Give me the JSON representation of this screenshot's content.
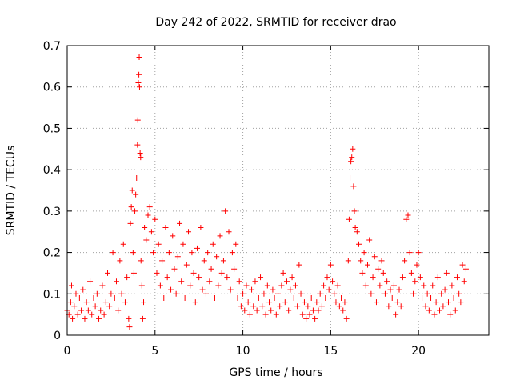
{
  "chart_data": {
    "type": "scatter",
    "title": "Day 242 of 2022, SRMTID for receiver drao",
    "xlabel": "GPS time / hours",
    "ylabel": "SRMTID / TECUs",
    "xlim": [
      0,
      24
    ],
    "ylim": [
      0,
      0.7
    ],
    "xticks": [
      0,
      5,
      10,
      15,
      20
    ],
    "yticks": [
      0,
      0.1,
      0.2,
      0.3,
      0.4,
      0.5,
      0.6,
      0.7
    ],
    "xtick_labels": [
      "0",
      "5",
      "10",
      "15",
      "20"
    ],
    "ytick_labels": [
      "0",
      "0.1",
      "0.2",
      "0.3",
      "0.4",
      "0.5",
      "0.6",
      "0.7"
    ],
    "grid": true,
    "marker": "+",
    "color": "#ff0000",
    "series": [
      {
        "name": "SRMTID",
        "points": [
          [
            0.0,
            0.06
          ],
          [
            0.1,
            0.05
          ],
          [
            0.2,
            0.08
          ],
          [
            0.25,
            0.12
          ],
          [
            0.3,
            0.04
          ],
          [
            0.4,
            0.07
          ],
          [
            0.5,
            0.1
          ],
          [
            0.6,
            0.05
          ],
          [
            0.7,
            0.09
          ],
          [
            0.8,
            0.06
          ],
          [
            0.9,
            0.11
          ],
          [
            1.0,
            0.04
          ],
          [
            1.1,
            0.08
          ],
          [
            1.2,
            0.06
          ],
          [
            1.3,
            0.13
          ],
          [
            1.4,
            0.05
          ],
          [
            1.5,
            0.09
          ],
          [
            1.6,
            0.07
          ],
          [
            1.7,
            0.1
          ],
          [
            1.8,
            0.04
          ],
          [
            1.9,
            0.06
          ],
          [
            2.0,
            0.12
          ],
          [
            2.1,
            0.05
          ],
          [
            2.2,
            0.08
          ],
          [
            2.3,
            0.15
          ],
          [
            2.4,
            0.07
          ],
          [
            2.5,
            0.1
          ],
          [
            2.6,
            0.2
          ],
          [
            2.7,
            0.09
          ],
          [
            2.8,
            0.13
          ],
          [
            2.9,
            0.06
          ],
          [
            3.0,
            0.18
          ],
          [
            3.1,
            0.1
          ],
          [
            3.2,
            0.22
          ],
          [
            3.3,
            0.08
          ],
          [
            3.4,
            0.14
          ],
          [
            3.5,
            0.04
          ],
          [
            3.55,
            0.02
          ],
          [
            3.6,
            0.27
          ],
          [
            3.65,
            0.31
          ],
          [
            3.7,
            0.35
          ],
          [
            3.75,
            0.2
          ],
          [
            3.8,
            0.15
          ],
          [
            3.85,
            0.3
          ],
          [
            3.9,
            0.34
          ],
          [
            3.95,
            0.38
          ],
          [
            4.0,
            0.46
          ],
          [
            4.02,
            0.52
          ],
          [
            4.05,
            0.61
          ],
          [
            4.08,
            0.63
          ],
          [
            4.1,
            0.672
          ],
          [
            4.12,
            0.6
          ],
          [
            4.15,
            0.44
          ],
          [
            4.18,
            0.43
          ],
          [
            4.2,
            0.18
          ],
          [
            4.25,
            0.12
          ],
          [
            4.3,
            0.04
          ],
          [
            4.35,
            0.08
          ],
          [
            4.4,
            0.26
          ],
          [
            4.5,
            0.23
          ],
          [
            4.6,
            0.29
          ],
          [
            4.7,
            0.31
          ],
          [
            4.8,
            0.25
          ],
          [
            4.9,
            0.2
          ],
          [
            5.0,
            0.28
          ],
          [
            5.1,
            0.15
          ],
          [
            5.2,
            0.22
          ],
          [
            5.3,
            0.12
          ],
          [
            5.4,
            0.18
          ],
          [
            5.5,
            0.09
          ],
          [
            5.6,
            0.26
          ],
          [
            5.7,
            0.14
          ],
          [
            5.8,
            0.2
          ],
          [
            5.9,
            0.11
          ],
          [
            6.0,
            0.24
          ],
          [
            6.1,
            0.16
          ],
          [
            6.2,
            0.1
          ],
          [
            6.3,
            0.19
          ],
          [
            6.4,
            0.27
          ],
          [
            6.5,
            0.13
          ],
          [
            6.6,
            0.22
          ],
          [
            6.7,
            0.09
          ],
          [
            6.8,
            0.17
          ],
          [
            6.9,
            0.25
          ],
          [
            7.0,
            0.12
          ],
          [
            7.1,
            0.2
          ],
          [
            7.2,
            0.15
          ],
          [
            7.3,
            0.08
          ],
          [
            7.4,
            0.21
          ],
          [
            7.5,
            0.14
          ],
          [
            7.6,
            0.26
          ],
          [
            7.7,
            0.11
          ],
          [
            7.8,
            0.18
          ],
          [
            7.9,
            0.1
          ],
          [
            8.0,
            0.2
          ],
          [
            8.1,
            0.13
          ],
          [
            8.2,
            0.16
          ],
          [
            8.3,
            0.22
          ],
          [
            8.4,
            0.09
          ],
          [
            8.5,
            0.19
          ],
          [
            8.6,
            0.12
          ],
          [
            8.7,
            0.24
          ],
          [
            8.8,
            0.15
          ],
          [
            8.9,
            0.18
          ],
          [
            9.0,
            0.3
          ],
          [
            9.1,
            0.14
          ],
          [
            9.2,
            0.25
          ],
          [
            9.3,
            0.11
          ],
          [
            9.4,
            0.2
          ],
          [
            9.5,
            0.16
          ],
          [
            9.6,
            0.22
          ],
          [
            9.7,
            0.09
          ],
          [
            9.8,
            0.13
          ],
          [
            9.9,
            0.07
          ],
          [
            10.0,
            0.1
          ],
          [
            10.1,
            0.06
          ],
          [
            10.2,
            0.12
          ],
          [
            10.3,
            0.08
          ],
          [
            10.4,
            0.05
          ],
          [
            10.5,
            0.11
          ],
          [
            10.6,
            0.07
          ],
          [
            10.7,
            0.13
          ],
          [
            10.8,
            0.06
          ],
          [
            10.9,
            0.09
          ],
          [
            11.0,
            0.14
          ],
          [
            11.1,
            0.07
          ],
          [
            11.2,
            0.1
          ],
          [
            11.3,
            0.05
          ],
          [
            11.4,
            0.12
          ],
          [
            11.5,
            0.08
          ],
          [
            11.6,
            0.06
          ],
          [
            11.7,
            0.11
          ],
          [
            11.8,
            0.09
          ],
          [
            11.9,
            0.05
          ],
          [
            12.0,
            0.1
          ],
          [
            12.1,
            0.07
          ],
          [
            12.2,
            0.12
          ],
          [
            12.3,
            0.15
          ],
          [
            12.4,
            0.08
          ],
          [
            12.5,
            0.13
          ],
          [
            12.6,
            0.06
          ],
          [
            12.7,
            0.11
          ],
          [
            12.8,
            0.14
          ],
          [
            12.9,
            0.09
          ],
          [
            13.0,
            0.12
          ],
          [
            13.1,
            0.07
          ],
          [
            13.2,
            0.17
          ],
          [
            13.3,
            0.1
          ],
          [
            13.4,
            0.05
          ],
          [
            13.5,
            0.08
          ],
          [
            13.6,
            0.04
          ],
          [
            13.7,
            0.07
          ],
          [
            13.8,
            0.05
          ],
          [
            13.9,
            0.09
          ],
          [
            14.0,
            0.06
          ],
          [
            14.1,
            0.04
          ],
          [
            14.2,
            0.08
          ],
          [
            14.3,
            0.06
          ],
          [
            14.4,
            0.1
          ],
          [
            14.5,
            0.07
          ],
          [
            14.6,
            0.12
          ],
          [
            14.7,
            0.09
          ],
          [
            14.8,
            0.14
          ],
          [
            14.9,
            0.11
          ],
          [
            15.0,
            0.17
          ],
          [
            15.1,
            0.13
          ],
          [
            15.2,
            0.1
          ],
          [
            15.3,
            0.08
          ],
          [
            15.4,
            0.12
          ],
          [
            15.5,
            0.07
          ],
          [
            15.6,
            0.09
          ],
          [
            15.7,
            0.06
          ],
          [
            15.8,
            0.08
          ],
          [
            15.9,
            0.04
          ],
          [
            16.0,
            0.18
          ],
          [
            16.05,
            0.28
          ],
          [
            16.1,
            0.38
          ],
          [
            16.15,
            0.42
          ],
          [
            16.2,
            0.43
          ],
          [
            16.25,
            0.45
          ],
          [
            16.3,
            0.36
          ],
          [
            16.35,
            0.3
          ],
          [
            16.4,
            0.26
          ],
          [
            16.5,
            0.25
          ],
          [
            16.6,
            0.22
          ],
          [
            16.7,
            0.18
          ],
          [
            16.8,
            0.15
          ],
          [
            16.9,
            0.2
          ],
          [
            17.0,
            0.12
          ],
          [
            17.1,
            0.17
          ],
          [
            17.2,
            0.23
          ],
          [
            17.3,
            0.1
          ],
          [
            17.4,
            0.14
          ],
          [
            17.5,
            0.19
          ],
          [
            17.6,
            0.08
          ],
          [
            17.7,
            0.16
          ],
          [
            17.8,
            0.12
          ],
          [
            17.9,
            0.18
          ],
          [
            18.0,
            0.15
          ],
          [
            18.1,
            0.1
          ],
          [
            18.2,
            0.13
          ],
          [
            18.3,
            0.07
          ],
          [
            18.4,
            0.11
          ],
          [
            18.5,
            0.09
          ],
          [
            18.6,
            0.12
          ],
          [
            18.7,
            0.05
          ],
          [
            18.8,
            0.08
          ],
          [
            18.9,
            0.11
          ],
          [
            19.0,
            0.07
          ],
          [
            19.1,
            0.14
          ],
          [
            19.2,
            0.18
          ],
          [
            19.3,
            0.28
          ],
          [
            19.4,
            0.29
          ],
          [
            19.5,
            0.2
          ],
          [
            19.6,
            0.15
          ],
          [
            19.7,
            0.1
          ],
          [
            19.8,
            0.13
          ],
          [
            19.9,
            0.17
          ],
          [
            20.0,
            0.2
          ],
          [
            20.1,
            0.14
          ],
          [
            20.2,
            0.09
          ],
          [
            20.3,
            0.12
          ],
          [
            20.4,
            0.07
          ],
          [
            20.5,
            0.1
          ],
          [
            20.6,
            0.06
          ],
          [
            20.7,
            0.09
          ],
          [
            20.8,
            0.12
          ],
          [
            20.9,
            0.05
          ],
          [
            21.0,
            0.08
          ],
          [
            21.1,
            0.14
          ],
          [
            21.2,
            0.06
          ],
          [
            21.3,
            0.1
          ],
          [
            21.4,
            0.07
          ],
          [
            21.5,
            0.11
          ],
          [
            21.6,
            0.15
          ],
          [
            21.7,
            0.08
          ],
          [
            21.8,
            0.05
          ],
          [
            21.9,
            0.12
          ],
          [
            22.0,
            0.09
          ],
          [
            22.1,
            0.06
          ],
          [
            22.2,
            0.14
          ],
          [
            22.3,
            0.1
          ],
          [
            22.4,
            0.08
          ],
          [
            22.5,
            0.17
          ],
          [
            22.6,
            0.13
          ],
          [
            22.7,
            0.16
          ]
        ]
      }
    ]
  }
}
